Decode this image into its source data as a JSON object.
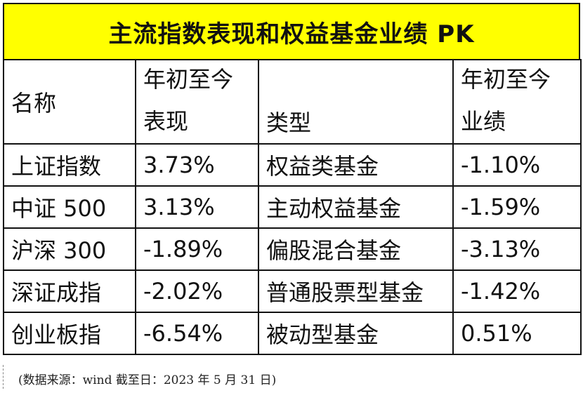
{
  "title": "主流指数表现和权益基金业绩 PK",
  "headers": {
    "name": "名称",
    "index_perf_line1": "年初至今",
    "index_perf_line2": "表现",
    "type": "类型",
    "fund_perf_line1": "年初至今",
    "fund_perf_line2": "业绩"
  },
  "rows": [
    {
      "name": "上证指数",
      "index_perf": "3.73%",
      "type": "权益类基金",
      "fund_perf": "-1.10%"
    },
    {
      "name": "中证 500",
      "index_perf": "3.13%",
      "type": "主动权益基金",
      "fund_perf": "-1.59%"
    },
    {
      "name": "沪深 300",
      "index_perf": "-1.89%",
      "type": "偏股混合基金",
      "fund_perf": "-3.13%"
    },
    {
      "name": "深证成指",
      "index_perf": "-2.02%",
      "type": "普通股票型基金",
      "fund_perf": "-1.42%"
    },
    {
      "name": "创业板指",
      "index_perf": "-6.54%",
      "type": "被动型基金",
      "fund_perf": "0.51%"
    }
  ],
  "footer": "(数据来源：wind  截至日：2023 年 5 月 31 日)"
}
